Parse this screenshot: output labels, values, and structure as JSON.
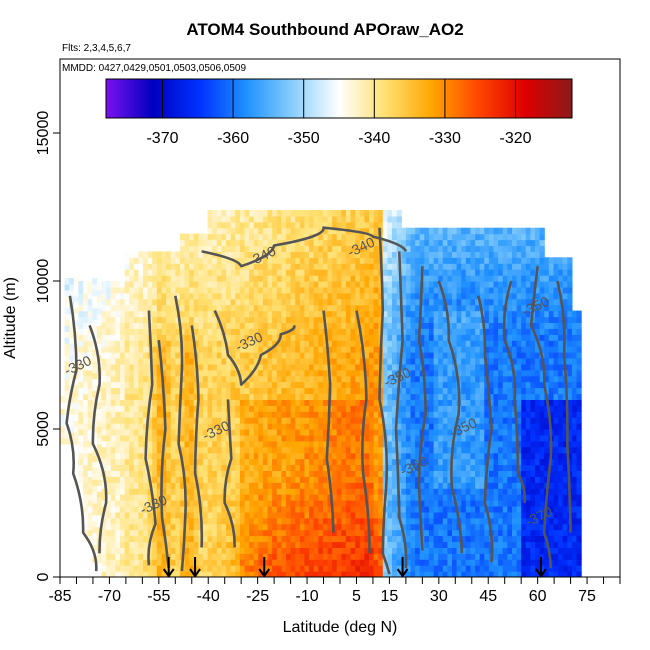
{
  "chart_data": {
    "type": "heatmap",
    "title": "ATOM4 Southbound APOraw_AO2",
    "subtitle_flights": "Flts: 2,3,4,5,6,7",
    "subtitle_dates": "MMDD: 0427,0429,0501,0503,0506,0509",
    "xlabel": "Latitude (deg N)",
    "ylabel": "Altitude (m)",
    "xlim": [
      -85,
      85
    ],
    "ylim": [
      0,
      17500
    ],
    "x_ticks": [
      -85,
      -70,
      -55,
      -40,
      -25,
      -10,
      5,
      15,
      30,
      45,
      60,
      75
    ],
    "y_ticks": [
      0,
      5000,
      10000,
      15000
    ],
    "colorbar": {
      "min": -378,
      "max": -312,
      "ticks": [
        -370,
        -360,
        -350,
        -340,
        -330,
        -320
      ],
      "colors": [
        "#7b12ee",
        "#0000c0",
        "#0030ff",
        "#1e90ff",
        "#87cefa",
        "#ffffff",
        "#ffe070",
        "#ffa500",
        "#ff4500",
        "#dd0000",
        "#8b1a1a"
      ]
    },
    "contour_labels": [
      {
        "value": "-340",
        "lat": -23,
        "alt": 10700
      },
      {
        "value": "-340",
        "lat": 7,
        "alt": 11000
      },
      {
        "value": "-330",
        "lat": -27,
        "alt": 7800
      },
      {
        "value": "-330",
        "lat": -37,
        "alt": 4800
      },
      {
        "value": "-330",
        "lat": -79,
        "alt": 7000
      },
      {
        "value": "-330",
        "lat": -56,
        "alt": 2300
      },
      {
        "value": "-350",
        "lat": 18,
        "alt": 6600
      },
      {
        "value": "-350",
        "lat": 38,
        "alt": 4900
      },
      {
        "value": "-350",
        "lat": 60,
        "alt": 9000
      },
      {
        "value": "-360",
        "lat": 23,
        "alt": 3600
      },
      {
        "value": "-370",
        "lat": 61,
        "alt": 1900
      }
    ],
    "profile_markers_lat": [
      -52,
      -44,
      -23,
      19,
      61
    ],
    "grid": false,
    "legend": "colorbar at top inside plot"
  }
}
